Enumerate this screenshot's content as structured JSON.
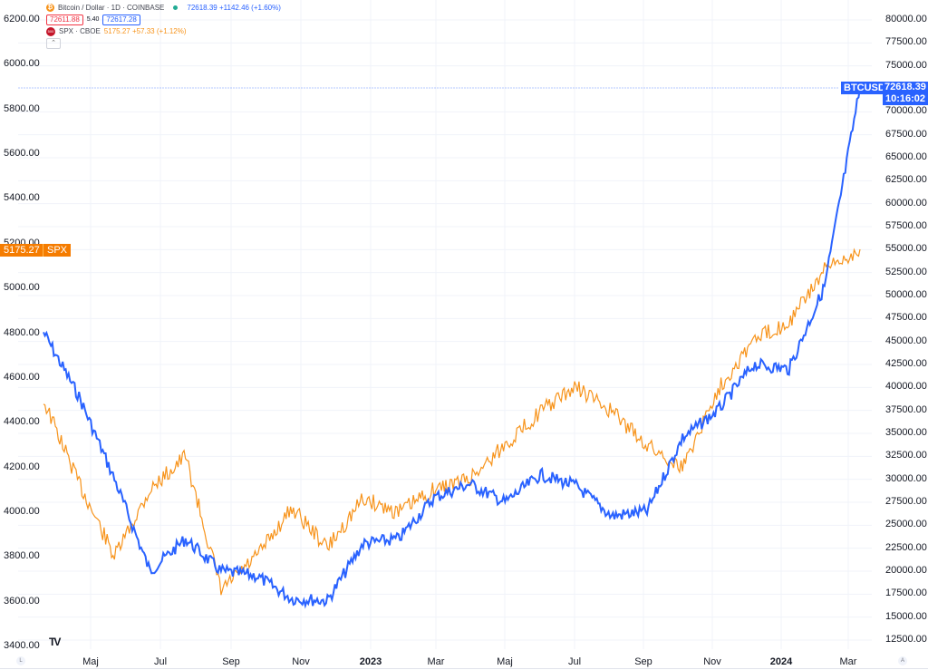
{
  "legend": {
    "btc": {
      "title": "Bitcoin / Dollar · 1D · COINBASE",
      "icon": "bitcoin-icon",
      "icon_glyph": "₿",
      "quote": "72618.39 +1142.46 (+1.60%)",
      "bid": "72611.88",
      "spread": "5.40",
      "ask": "72617.28",
      "color": "#2962ff"
    },
    "spx": {
      "title": "SPX · CBOE",
      "icon": "spx-icon",
      "icon_glyph": "500",
      "quote": "5175.27 +57.33 (+1.12%)",
      "color": "#f7931a"
    },
    "collapse_glyph": "⌃"
  },
  "price_tags": {
    "btc_name": "BTCUSD",
    "btc_price": "72618.39",
    "btc_countdown": "10:16:02",
    "spx_price": "5175.27",
    "spx_name": "SPX"
  },
  "left_axis": [
    "6200.00",
    "6000.00",
    "5800.00",
    "5600.00",
    "5400.00",
    "5200.00",
    "5000.00",
    "4800.00",
    "4600.00",
    "4400.00",
    "4200.00",
    "4000.00",
    "3800.00",
    "3600.00",
    "3400.00"
  ],
  "right_axis": [
    "80000.00",
    "77500.00",
    "75000.00",
    "70000.00",
    "67500.00",
    "65000.00",
    "62500.00",
    "60000.00",
    "57500.00",
    "55000.00",
    "52500.00",
    "50000.00",
    "47500.00",
    "45000.00",
    "42500.00",
    "40000.00",
    "37500.00",
    "35000.00",
    "32500.00",
    "30000.00",
    "27500.00",
    "25000.00",
    "22500.00",
    "20000.00",
    "17500.00",
    "15000.00",
    "12500.00"
  ],
  "x_axis": [
    {
      "label": "Maj",
      "year": false
    },
    {
      "label": "Jul",
      "year": false
    },
    {
      "label": "Sep",
      "year": false
    },
    {
      "label": "Nov",
      "year": false
    },
    {
      "label": "2023",
      "year": true
    },
    {
      "label": "Mar",
      "year": false
    },
    {
      "label": "Maj",
      "year": false
    },
    {
      "label": "Jul",
      "year": false
    },
    {
      "label": "Sep",
      "year": false
    },
    {
      "label": "Nov",
      "year": false
    },
    {
      "label": "2024",
      "year": true
    },
    {
      "label": "Mar",
      "year": false
    }
  ],
  "footer": {
    "logo": "TV",
    "left_scale_btn": "L",
    "right_scale_btn": "A"
  },
  "chart_data": {
    "type": "line",
    "title": "Bitcoin / Dollar · 1D · COINBASE vs SPX · CBOE",
    "xlabel": "",
    "ylabel_left": "SPX",
    "ylabel_right": "BTCUSD",
    "ylim_left": [
      3400,
      6200
    ],
    "ylim_right": [
      12500,
      80000
    ],
    "grid": true,
    "legend_position": "top-left",
    "x": [
      "2022-04",
      "2022-05",
      "2022-06",
      "2022-07",
      "2022-08",
      "2022-09",
      "2022-10",
      "2022-11",
      "2022-12",
      "2023-01",
      "2023-02",
      "2023-03",
      "2023-04",
      "2023-05",
      "2023-06",
      "2023-07",
      "2023-08",
      "2023-09",
      "2023-10",
      "2023-11",
      "2023-12",
      "2024-01",
      "2024-02",
      "2024-03"
    ],
    "series": [
      {
        "name": "BTCUSD",
        "axis": "right",
        "color": "#2962ff",
        "values": [
          46000,
          39000,
          30000,
          20000,
          23500,
          20000,
          19500,
          17000,
          16800,
          23000,
          23500,
          28000,
          29500,
          27500,
          30500,
          29300,
          26000,
          26500,
          34500,
          37500,
          42500,
          42000,
          51000,
          72618
        ]
      },
      {
        "name": "SPX",
        "axis": "left",
        "color": "#f7931a",
        "values": [
          4500,
          4130,
          3800,
          4100,
          4250,
          3650,
          3800,
          4020,
          3840,
          4060,
          4000,
          4100,
          4150,
          4300,
          4450,
          4560,
          4450,
          4300,
          4200,
          4550,
          4770,
          4850,
          5080,
          5175
        ]
      }
    ]
  }
}
